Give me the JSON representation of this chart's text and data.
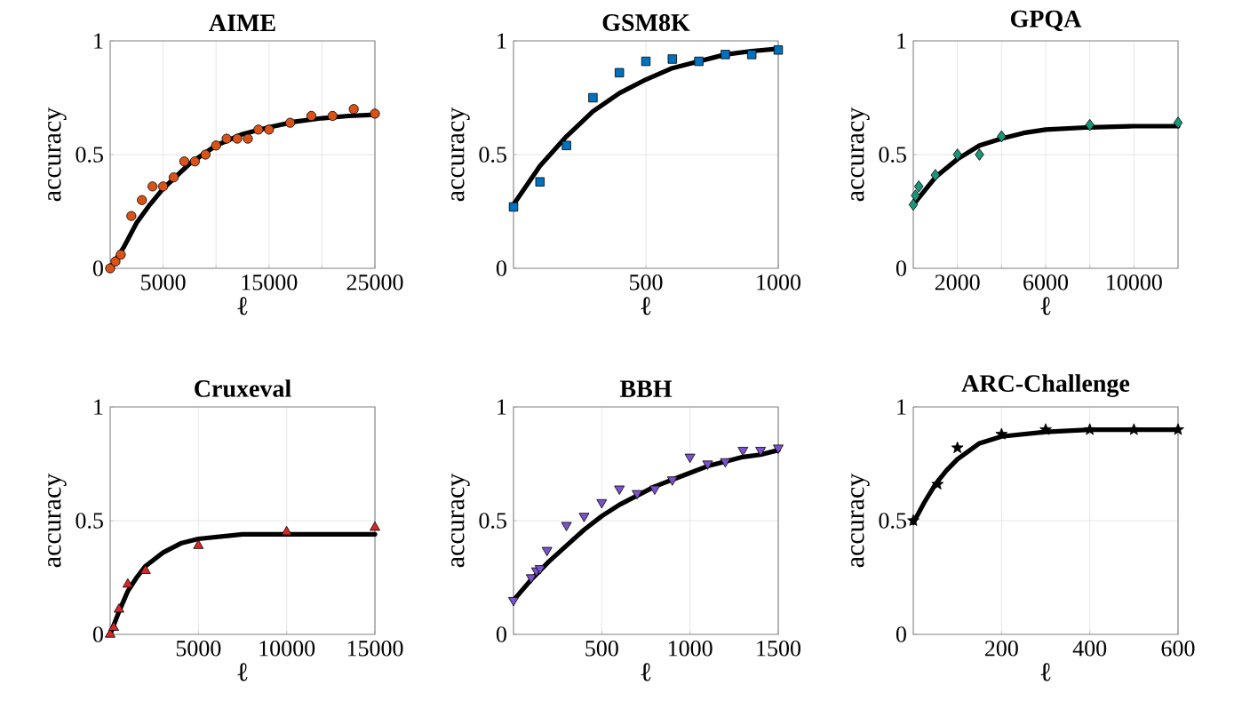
{
  "chart_data": [
    {
      "type": "scatter",
      "title": "AIME",
      "xlabel": "ℓ",
      "ylabel": "accuracy",
      "xlim": [
        0,
        25000
      ],
      "ylim": [
        0,
        1
      ],
      "xticks": [
        5000,
        {
          "value": 10000,
          "label": null
        },
        15000,
        {
          "value": 20000,
          "label": null
        },
        25000
      ],
      "yticks": [
        0,
        0.5,
        1
      ],
      "grid": true,
      "series": [
        {
          "marker": "circle",
          "color": "#d95319",
          "x": [
            0,
            500,
            1000,
            2000,
            3000,
            4000,
            5000,
            6000,
            7000,
            8000,
            9000,
            10000,
            11000,
            12000,
            13000,
            14000,
            15000,
            17000,
            19000,
            21000,
            23000,
            25000
          ],
          "values": [
            0.0,
            0.03,
            0.06,
            0.23,
            0.3,
            0.36,
            0.36,
            0.4,
            0.47,
            0.47,
            0.5,
            0.54,
            0.57,
            0.57,
            0.57,
            0.61,
            0.61,
            0.64,
            0.67,
            0.67,
            0.7,
            0.68
          ]
        },
        {
          "type": "line",
          "marker": "none",
          "color": "#000000",
          "x": [
            0,
            1250,
            2500,
            3750,
            5000,
            7500,
            10000,
            12500,
            15000,
            17500,
            20000,
            22500,
            25000
          ],
          "values": [
            0.0,
            0.09,
            0.2,
            0.28,
            0.35,
            0.46,
            0.54,
            0.59,
            0.62,
            0.645,
            0.66,
            0.67,
            0.675
          ]
        }
      ]
    },
    {
      "type": "scatter",
      "title": "GSM8K",
      "xlabel": "ℓ",
      "ylabel": "accuracy",
      "xlim": [
        0,
        1000
      ],
      "ylim": [
        0,
        1
      ],
      "xticks": [
        500,
        1000
      ],
      "yticks": [
        0,
        0.5,
        1
      ],
      "grid": true,
      "series": [
        {
          "marker": "square",
          "color": "#0072bd",
          "x": [
            0,
            100,
            200,
            300,
            400,
            500,
            600,
            700,
            800,
            900,
            1000
          ],
          "values": [
            0.27,
            0.38,
            0.54,
            0.75,
            0.86,
            0.91,
            0.92,
            0.91,
            0.94,
            0.94,
            0.96
          ]
        },
        {
          "type": "line",
          "marker": "none",
          "color": "#000000",
          "x": [
            0,
            100,
            200,
            300,
            400,
            500,
            600,
            700,
            800,
            900,
            1000
          ],
          "values": [
            0.28,
            0.45,
            0.58,
            0.69,
            0.77,
            0.83,
            0.88,
            0.91,
            0.94,
            0.955,
            0.965
          ]
        }
      ]
    },
    {
      "type": "scatter",
      "title": "GPQA",
      "xlabel": "ℓ",
      "ylabel": "accuracy",
      "xlim": [
        0,
        12000
      ],
      "ylim": [
        0,
        1
      ],
      "xticks": [
        2000,
        {
          "value": 4000,
          "label": null
        },
        6000,
        {
          "value": 8000,
          "label": null
        },
        10000
      ],
      "yticks": [
        0,
        0.5,
        1
      ],
      "grid": true,
      "series": [
        {
          "marker": "diamond",
          "color": "#17967a",
          "x": [
            0,
            100,
            250,
            1000,
            2000,
            3000,
            4000,
            8000,
            12000
          ],
          "values": [
            0.28,
            0.32,
            0.36,
            0.41,
            0.5,
            0.5,
            0.58,
            0.63,
            0.64
          ]
        },
        {
          "type": "line",
          "marker": "none",
          "color": "#000000",
          "x": [
            0,
            1000,
            2000,
            3000,
            4000,
            5000,
            6000,
            8000,
            10000,
            12000
          ],
          "values": [
            0.28,
            0.4,
            0.48,
            0.54,
            0.57,
            0.595,
            0.61,
            0.62,
            0.625,
            0.625
          ]
        }
      ]
    },
    {
      "type": "scatter",
      "title": "Cruxeval",
      "xlabel": "ℓ",
      "ylabel": "accuracy",
      "xlim": [
        0,
        15000
      ],
      "ylim": [
        0,
        1
      ],
      "xticks": [
        5000,
        10000,
        15000
      ],
      "yticks": [
        0,
        0.5,
        1
      ],
      "grid": true,
      "series": [
        {
          "marker": "triangle",
          "color": "#d62728",
          "x": [
            0,
            200,
            500,
            1000,
            2000,
            5000,
            10000,
            15000
          ],
          "values": [
            0.0,
            0.03,
            0.11,
            0.22,
            0.28,
            0.39,
            0.45,
            0.47
          ]
        },
        {
          "type": "line",
          "marker": "none",
          "color": "#000000",
          "x": [
            0,
            500,
            1000,
            1500,
            2000,
            3000,
            4000,
            5000,
            7500,
            10000,
            15000
          ],
          "values": [
            0.0,
            0.1,
            0.19,
            0.25,
            0.3,
            0.36,
            0.4,
            0.42,
            0.44,
            0.44,
            0.44
          ]
        }
      ]
    },
    {
      "type": "scatter",
      "title": "BBH",
      "xlabel": "ℓ",
      "ylabel": "accuracy",
      "xlim": [
        0,
        1500
      ],
      "ylim": [
        0,
        1
      ],
      "xticks": [
        500,
        1000,
        1500
      ],
      "yticks": [
        0,
        0.5,
        1
      ],
      "grid": true,
      "series": [
        {
          "marker": "triangle-down",
          "color": "#7b52c9",
          "x": [
            0,
            100,
            130,
            150,
            190,
            300,
            400,
            500,
            600,
            700,
            800,
            900,
            1000,
            1100,
            1200,
            1300,
            1400,
            1500
          ],
          "values": [
            0.15,
            0.25,
            0.28,
            0.29,
            0.37,
            0.48,
            0.52,
            0.58,
            0.64,
            0.62,
            0.64,
            0.68,
            0.78,
            0.75,
            0.76,
            0.81,
            0.81,
            0.82
          ]
        },
        {
          "type": "line",
          "marker": "none",
          "color": "#000000",
          "x": [
            0,
            100,
            200,
            300,
            400,
            500,
            600,
            700,
            800,
            900,
            1000,
            1100,
            1200,
            1300,
            1400,
            1500
          ],
          "values": [
            0.15,
            0.24,
            0.32,
            0.39,
            0.46,
            0.52,
            0.57,
            0.61,
            0.65,
            0.68,
            0.71,
            0.74,
            0.76,
            0.78,
            0.79,
            0.81
          ]
        }
      ]
    },
    {
      "type": "scatter",
      "title": "ARC-Challenge",
      "xlabel": "ℓ",
      "ylabel": "accuracy",
      "xlim": [
        0,
        600
      ],
      "ylim": [
        0,
        1
      ],
      "xticks": [
        200,
        400,
        600
      ],
      "yticks": [
        0,
        0.5,
        1
      ],
      "grid": true,
      "series": [
        {
          "marker": "star",
          "color": "#000000",
          "x": [
            0,
            55,
            100,
            200,
            300,
            400,
            500,
            600
          ],
          "values": [
            0.5,
            0.66,
            0.82,
            0.88,
            0.9,
            0.9,
            0.9,
            0.9
          ]
        },
        {
          "type": "line",
          "marker": "none",
          "color": "#000000",
          "x": [
            0,
            25,
            50,
            75,
            100,
            150,
            200,
            300,
            400,
            600
          ],
          "values": [
            0.49,
            0.58,
            0.66,
            0.72,
            0.77,
            0.84,
            0.87,
            0.89,
            0.9,
            0.9
          ]
        }
      ]
    }
  ]
}
